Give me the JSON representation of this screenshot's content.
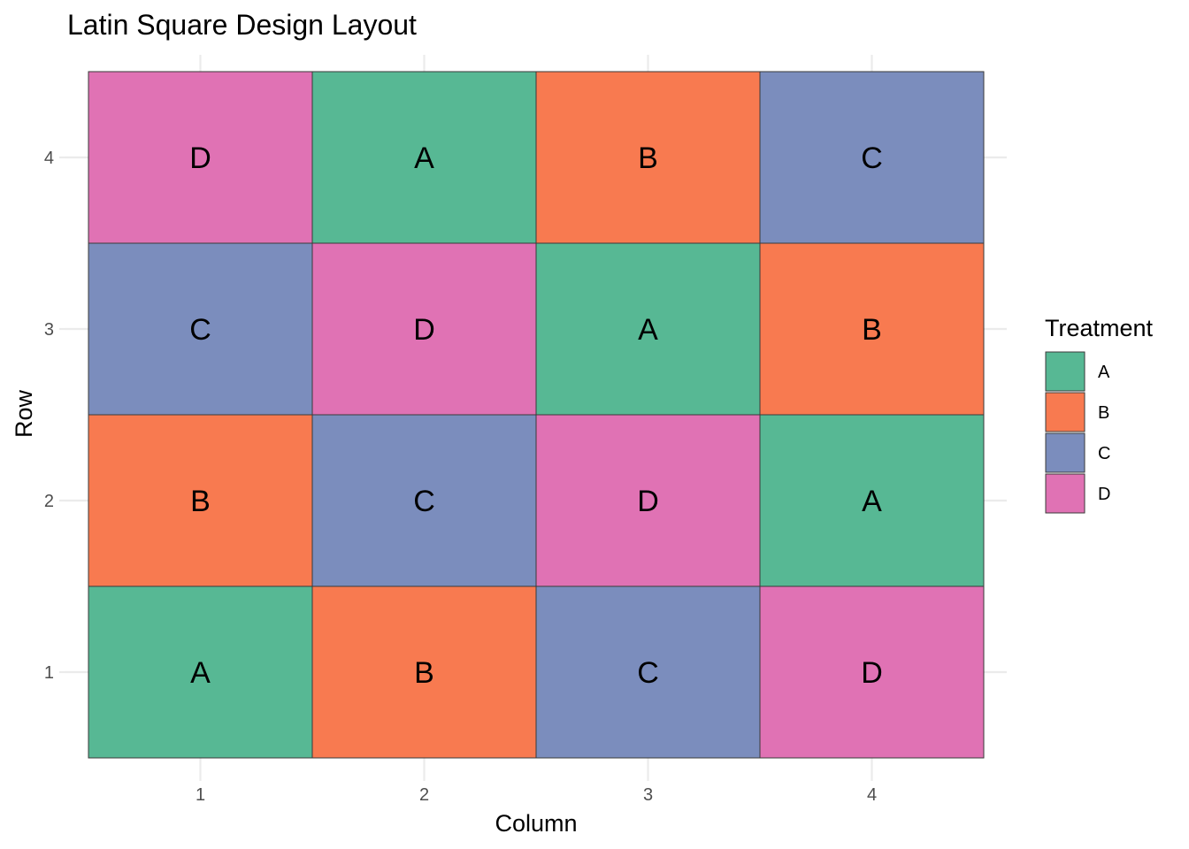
{
  "chart_data": {
    "type": "heatmap",
    "title": "Latin Square Design Layout",
    "xlabel": "Column",
    "ylabel": "Row",
    "x_ticks": [
      "1",
      "2",
      "3",
      "4"
    ],
    "y_ticks": [
      "1",
      "2",
      "3",
      "4"
    ],
    "xlim": [
      0.5,
      4.5
    ],
    "ylim": [
      0.5,
      4.5
    ],
    "grid": true,
    "cells": [
      {
        "column": 1,
        "row": 1,
        "treatment": "A"
      },
      {
        "column": 2,
        "row": 1,
        "treatment": "B"
      },
      {
        "column": 3,
        "row": 1,
        "treatment": "C"
      },
      {
        "column": 4,
        "row": 1,
        "treatment": "D"
      },
      {
        "column": 1,
        "row": 2,
        "treatment": "B"
      },
      {
        "column": 2,
        "row": 2,
        "treatment": "C"
      },
      {
        "column": 3,
        "row": 2,
        "treatment": "D"
      },
      {
        "column": 4,
        "row": 2,
        "treatment": "A"
      },
      {
        "column": 1,
        "row": 3,
        "treatment": "C"
      },
      {
        "column": 2,
        "row": 3,
        "treatment": "D"
      },
      {
        "column": 3,
        "row": 3,
        "treatment": "A"
      },
      {
        "column": 4,
        "row": 3,
        "treatment": "B"
      },
      {
        "column": 1,
        "row": 4,
        "treatment": "D"
      },
      {
        "column": 2,
        "row": 4,
        "treatment": "A"
      },
      {
        "column": 3,
        "row": 4,
        "treatment": "B"
      },
      {
        "column": 4,
        "row": 4,
        "treatment": "C"
      }
    ],
    "legend": {
      "title": "Treatment",
      "placement": "right",
      "entries": [
        {
          "label": "A",
          "color": "#57b894"
        },
        {
          "label": "B",
          "color": "#f87a50"
        },
        {
          "label": "C",
          "color": "#7b8dbd"
        },
        {
          "label": "D",
          "color": "#e072b4"
        }
      ]
    }
  }
}
